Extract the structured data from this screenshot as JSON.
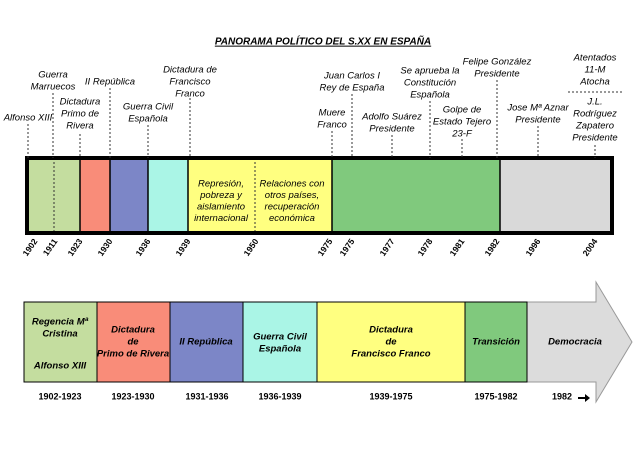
{
  "title": "PANORAMA POLÍTICO DEL S.XX EN ESPAÑA",
  "top_timeline": {
    "events": [
      {
        "lines": [
          "Alfonso XIII"
        ]
      },
      {
        "lines": [
          "Guerra",
          "Marruecos"
        ]
      },
      {
        "lines": [
          "Dictadura",
          "Primo de",
          "Rivera"
        ]
      },
      {
        "lines": [
          "II República"
        ]
      },
      {
        "lines": [
          "Guerra Civil",
          "Española"
        ]
      },
      {
        "lines": [
          "Dictadura de",
          "Francisco",
          "Franco"
        ]
      },
      {
        "lines": [
          "Juan Carlos I",
          "Rey de España"
        ]
      },
      {
        "lines": [
          "Muere",
          "Franco"
        ]
      },
      {
        "lines": [
          "Adolfo Suárez",
          "Presidente"
        ]
      },
      {
        "lines": [
          "Se aprueba la",
          "Constitución",
          "Española"
        ]
      },
      {
        "lines": [
          "Golpe de",
          "Estado Tejero",
          "23-F"
        ]
      },
      {
        "lines": [
          "Felipe González",
          "Presidente"
        ]
      },
      {
        "lines": [
          "Jose Mª Aznar",
          "Presidente"
        ]
      },
      {
        "lines": [
          "Atentados",
          "11-M",
          "Atocha"
        ]
      },
      {
        "lines": [
          "J.L.",
          "Rodríguez",
          "Zapatero",
          "Presidente"
        ]
      }
    ],
    "notes": [
      {
        "lines": [
          "Represión,",
          "pobreza y",
          "aislamiento",
          "internacional"
        ]
      },
      {
        "lines": [
          "Relaciones con",
          "otros países,",
          "recuperación",
          "económica"
        ]
      }
    ],
    "years": [
      "1902",
      "1911",
      "1923",
      "1930",
      "1936",
      "1939",
      "1950",
      "1975",
      "1975",
      "1977",
      "1978",
      "1981",
      "1982",
      "1996",
      "2004"
    ]
  },
  "bottom_timeline": {
    "periods": [
      {
        "lines": [
          "Regencia Mª",
          "Cristina",
          "Alfonso XIII"
        ],
        "years": "1902-1923"
      },
      {
        "lines": [
          "Dictadura",
          "de",
          "Primo de Rivera"
        ],
        "years": "1923-1930"
      },
      {
        "lines": [
          "II República"
        ],
        "years": "1931-1936"
      },
      {
        "lines": [
          "Guerra Civil",
          "Española"
        ],
        "years": "1936-1939"
      },
      {
        "lines": [
          "Dictadura",
          "de",
          "Francisco Franco"
        ],
        "years": "1939-1975"
      },
      {
        "lines": [
          "Transición"
        ],
        "years": "1975-1982"
      },
      {
        "lines": [
          "Democracia"
        ],
        "years": "1982"
      }
    ]
  }
}
